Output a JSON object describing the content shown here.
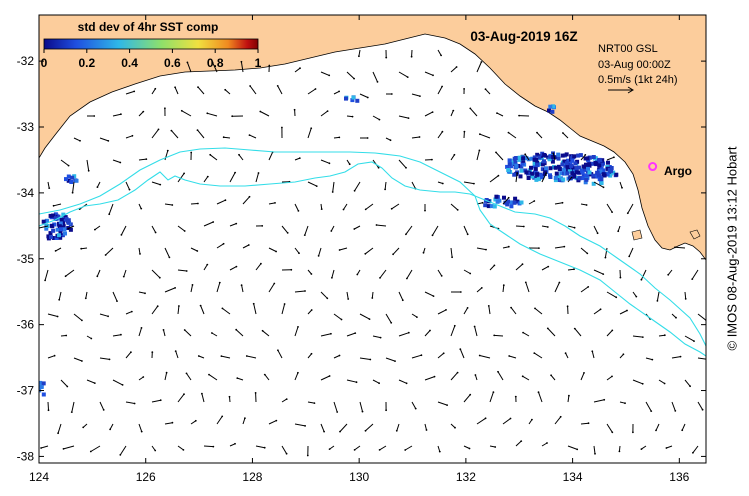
{
  "title": "03-Aug-2019 16Z",
  "colorbar": {
    "label": "std dev of 4hr SST comp",
    "ticks": [
      "0",
      "0.2",
      "0.4",
      "0.6",
      "0.8",
      "1"
    ],
    "colors": [
      "#0a0a8a",
      "#1f4fe0",
      "#2fb8e8",
      "#8fe06a",
      "#f0e040",
      "#f08a20",
      "#c01010",
      "#800000"
    ]
  },
  "info": {
    "product": "NRT00 GSL",
    "time": "03-Aug 00:00Z",
    "scale": "0.5m/s (1kt 24h)"
  },
  "marker": {
    "label": "Argo",
    "lon": 135.5,
    "lat": -33.6,
    "color": "#ff33ff"
  },
  "axes": {
    "x_ticks": [
      "124",
      "126",
      "128",
      "130",
      "132",
      "134",
      "136"
    ],
    "y_ticks": [
      "-32",
      "-33",
      "-34",
      "-35",
      "-36",
      "-37",
      "-38"
    ],
    "xlim": [
      124,
      136.5
    ],
    "ylim": [
      -38.1,
      -31.3
    ]
  },
  "credit": "© IMOS 08-Aug-2019 13:12 Hobart",
  "colors": {
    "land": "#fccd9c",
    "coast": "#000000",
    "contour": "#33dde8",
    "arrow": "#000000"
  }
}
